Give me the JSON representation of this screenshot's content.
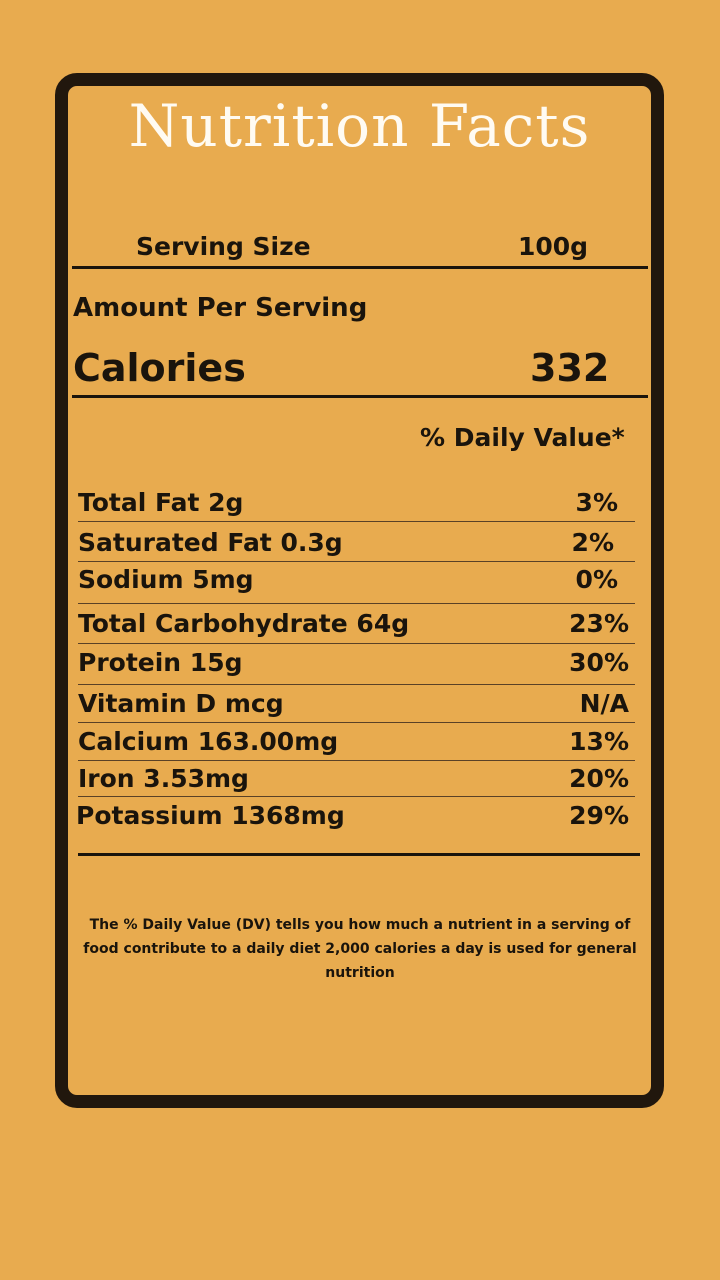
{
  "label": {
    "title": "Nutrition Facts",
    "serving_size_label": "Serving Size",
    "serving_size_value": "100g",
    "amount_per_serving": "Amount Per Serving",
    "calories_label": "Calories",
    "calories_value": "332",
    "daily_value_header": "% Daily Value*",
    "nutrients": [
      {
        "name": "Total Fat 2g",
        "dv": "3%"
      },
      {
        "name": "Saturated Fat 0.3g",
        "dv": "2%"
      },
      {
        "name": "Sodium 5mg",
        "dv": "0%"
      },
      {
        "name": "Total Carbohydrate 64g",
        "dv": "23%"
      },
      {
        "name": "Protein 15g",
        "dv": "30%"
      },
      {
        "name": "Vitamin D mcg",
        "dv": "N/A"
      },
      {
        "name": "Calcium 163.00mg",
        "dv": "13%"
      },
      {
        "name": "Iron 3.53mg",
        "dv": "20%"
      },
      {
        "name": "Potassium 1368mg",
        "dv": "29%"
      }
    ],
    "footnote": "The % Daily Value (DV) tells you how much a nutrient in a serving of food contribute to a daily diet 2,000 calories a day is used for general nutrition"
  },
  "colors": {
    "background": "#E8AB4F",
    "border": "#21170d",
    "title_text": "#fffbf2",
    "body_text": "#1a140c"
  }
}
